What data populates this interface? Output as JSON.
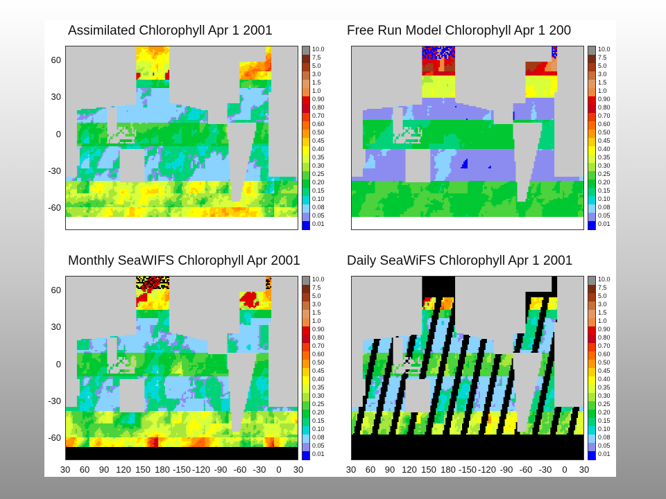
{
  "chart_data": [
    {
      "type": "heatmap",
      "title": "Assimilated Chlorophyll Apr 1 2001",
      "yticks": [
        "60",
        "30",
        "0",
        "-30",
        "-60"
      ],
      "xticks": [],
      "ylim": [
        -78,
        72
      ],
      "colorbar": [
        "10.0",
        "7.5",
        "5.0",
        "3.0",
        "1.5",
        "1.0",
        "0.90",
        "0.80",
        "0.70",
        "0.60",
        "0.50",
        "0.45",
        "0.40",
        "0.35",
        "0.30",
        "0.25",
        "0.20",
        "0.15",
        "0.10",
        "0.08",
        "0.05",
        "0.01"
      ],
      "field": "assimilated"
    },
    {
      "type": "heatmap",
      "title": "Free Run Model Chlorophyll Apr 1 200",
      "yticks": [],
      "xticks": [],
      "ylim": [
        -78,
        72
      ],
      "colorbar": [
        "10.0",
        "7.5",
        "5.0",
        "3.0",
        "1.5",
        "1.0",
        "0.90",
        "0.80",
        "0.70",
        "0.60",
        "0.50",
        "0.45",
        "0.40",
        "0.35",
        "0.30",
        "0.25",
        "0.20",
        "0.15",
        "0.10",
        "0.08",
        "0.05",
        "0.01"
      ],
      "field": "free_run"
    },
    {
      "type": "heatmap",
      "title": "Monthly SeaWIFS Chlorophyll Apr 2001",
      "yticks": [
        "60",
        "30",
        "0",
        "-30",
        "-60"
      ],
      "xticks": [
        "30",
        "60",
        "90",
        "120",
        "150",
        "180",
        "-150",
        "-120",
        "-90",
        "-60",
        "-30",
        "0",
        "30"
      ],
      "ylim": [
        -78,
        72
      ],
      "colorbar": [
        "10.0",
        "7.5",
        "5.0",
        "3.0",
        "1.5",
        "1.0",
        "0.90",
        "0.80",
        "0.70",
        "0.60",
        "0.50",
        "0.45",
        "0.40",
        "0.35",
        "0.30",
        "0.25",
        "0.20",
        "0.15",
        "0.10",
        "0.08",
        "0.05",
        "0.01"
      ],
      "field": "monthly"
    },
    {
      "type": "heatmap",
      "title": "Daily SeaWiFS Chlorophyll Apr 1 2001",
      "yticks": [],
      "xticks": [
        "30",
        "60",
        "90",
        "120",
        "150",
        "180",
        "-150",
        "-120",
        "-90",
        "-60",
        "-30",
        "0",
        "30"
      ],
      "ylim": [
        -78,
        72
      ],
      "colorbar": [
        "10.0",
        "7.5",
        "5.0",
        "3.0",
        "1.5",
        "1.0",
        "0.90",
        "0.80",
        "0.70",
        "0.60",
        "0.50",
        "0.45",
        "0.40",
        "0.35",
        "0.30",
        "0.25",
        "0.20",
        "0.15",
        "0.10",
        "0.08",
        "0.05",
        "0.01"
      ],
      "field": "daily"
    }
  ],
  "colors": {
    "colorbar": [
      "#8c8c8c",
      "#7a2a0f",
      "#a33a14",
      "#c7703a",
      "#e09a66",
      "#ef8a3c",
      "#e00000",
      "#c8001a",
      "#f03a00",
      "#ff6a00",
      "#ff9a00",
      "#ffd000",
      "#ffff00",
      "#d8ff3a",
      "#a8e63a",
      "#4cd23c",
      "#00c832",
      "#00d27a",
      "#00d8d8",
      "#8ad2ff",
      "#8c8cf0",
      "#0000ff"
    ],
    "land": "#c8c8c8",
    "no_data": "#000000",
    "ice": "#ffffff"
  }
}
